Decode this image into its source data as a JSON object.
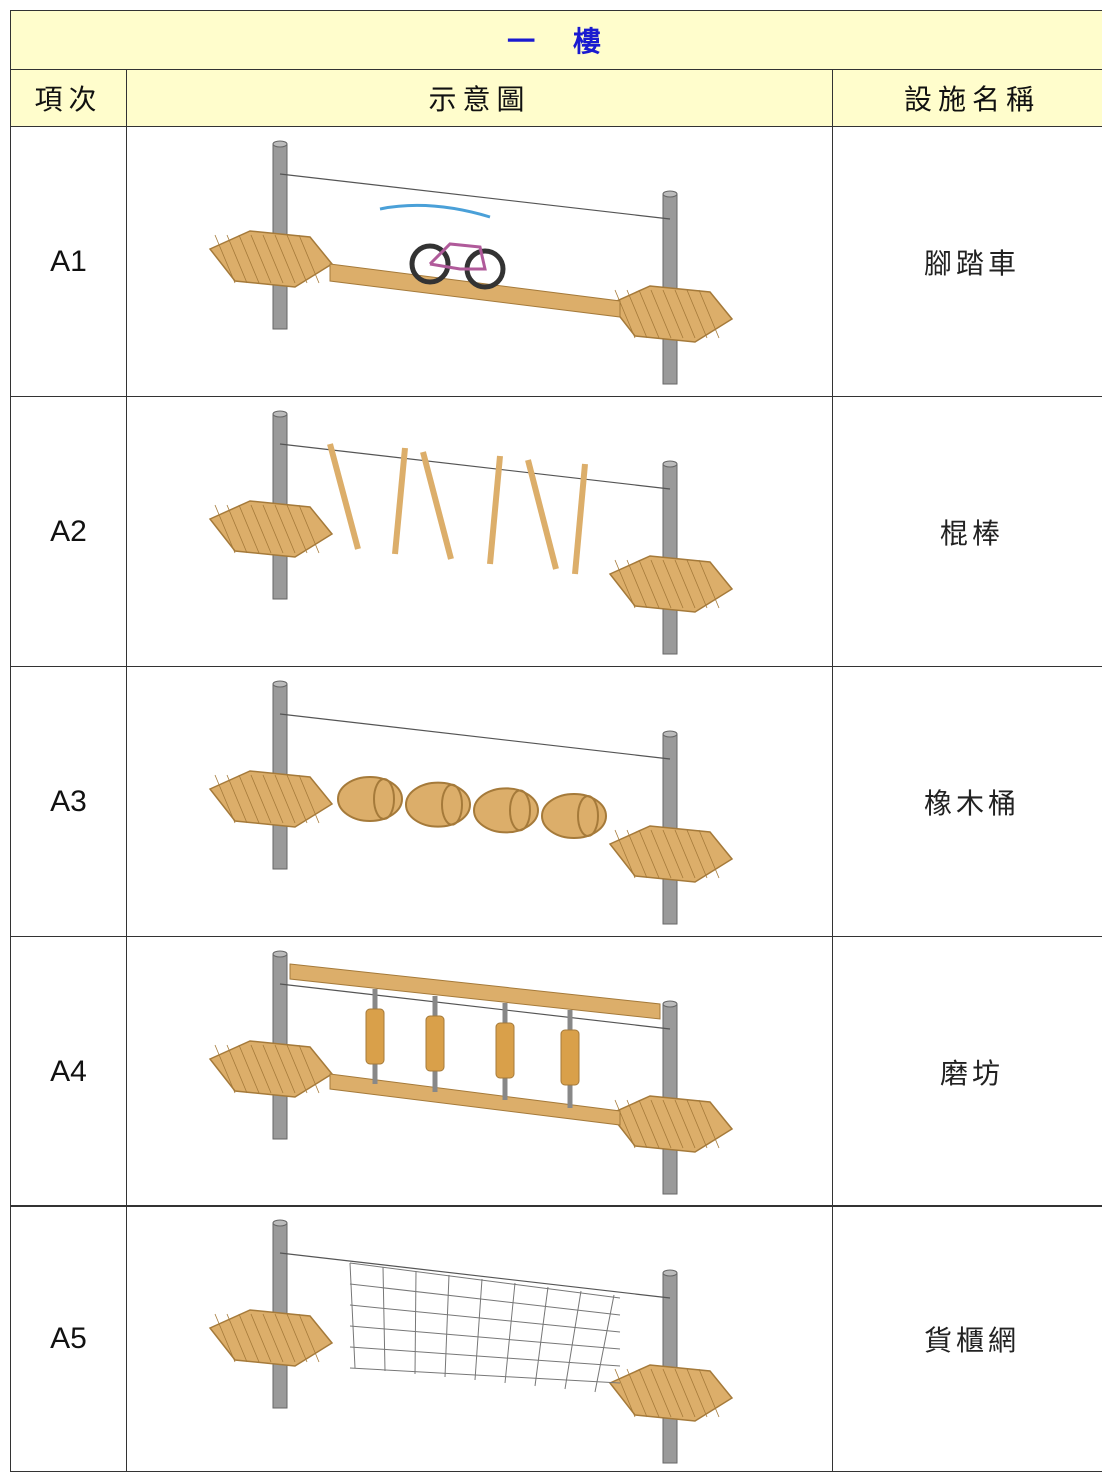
{
  "table": {
    "title": "一 樓",
    "columns": [
      "項次",
      "示意圖",
      "設施名稱"
    ],
    "rows": [
      [
        "A1",
        "腳踏車"
      ],
      [
        "A2",
        "棍棒"
      ],
      [
        "A3",
        "橡木桶"
      ],
      [
        "A4",
        "磨坊"
      ],
      [
        "A5",
        "貨櫃網"
      ]
    ]
  }
}
